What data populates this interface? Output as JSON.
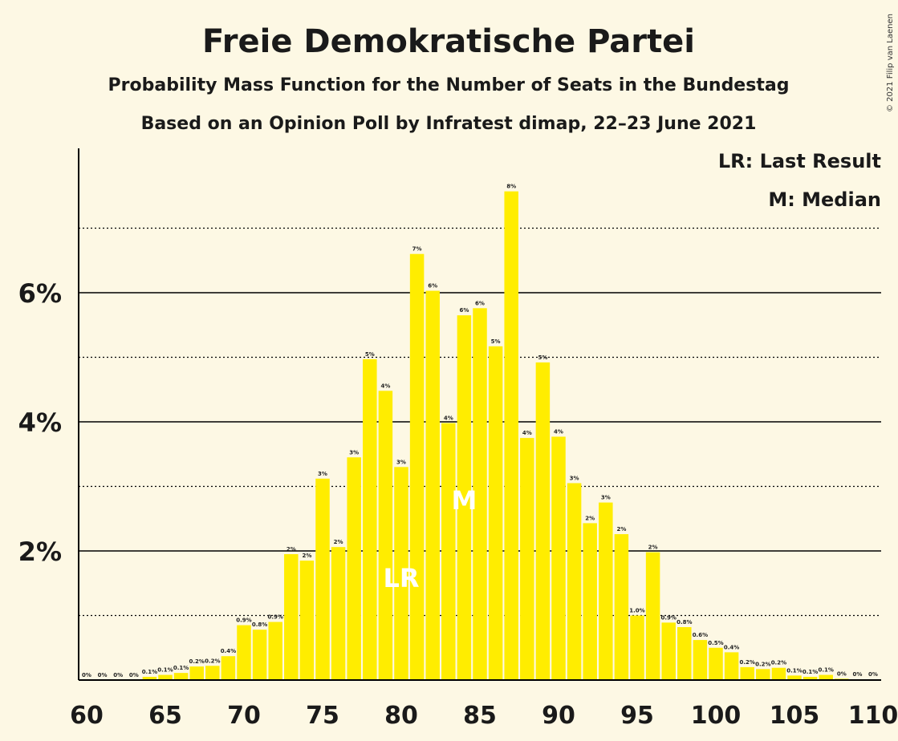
{
  "title": "Freie Demokratische Partei",
  "subtitle": "Probability Mass Function for the Number of Seats in the Bundestag",
  "subtitle2": "Based on an Opinion Poll by Infratest dimap, 22–23 June 2021",
  "copyright": "© 2021 Filip van Laenen",
  "legend": {
    "lr": "LR: Last Result",
    "m": "M: Median"
  },
  "marker_lr": "LR",
  "marker_m": "M",
  "chart_data": {
    "type": "bar",
    "x": [
      60,
      61,
      62,
      63,
      64,
      65,
      66,
      67,
      68,
      69,
      70,
      71,
      72,
      73,
      74,
      75,
      76,
      77,
      78,
      79,
      80,
      81,
      82,
      83,
      84,
      85,
      86,
      87,
      88,
      89,
      90,
      91,
      92,
      93,
      94,
      95,
      96,
      97,
      98,
      99,
      100,
      101,
      102,
      103,
      104,
      105,
      106,
      107,
      108,
      109,
      110
    ],
    "values": [
      0,
      0,
      0,
      0,
      0.05,
      0.08,
      0.11,
      0.21,
      0.22,
      0.37,
      0.85,
      0.78,
      0.9,
      1.95,
      1.85,
      3.12,
      2.06,
      3.45,
      4.97,
      4.48,
      3.3,
      6.6,
      6.03,
      3.98,
      5.65,
      5.76,
      5.17,
      7.57,
      3.75,
      4.92,
      3.77,
      3.05,
      2.43,
      2.75,
      2.26,
      1.0,
      1.98,
      0.89,
      0.82,
      0.62,
      0.5,
      0.43,
      0.2,
      0.17,
      0.19,
      0.07,
      0.05,
      0.08,
      0.02,
      0.01,
      0.01
    ],
    "labels": [
      "0%",
      "0%",
      "0%",
      "0%",
      "0.1%",
      "0.1%",
      "0.1%",
      "0.2%",
      "0.2%",
      "0.4%",
      "0.9%",
      "0.8%",
      "0.9%",
      "2%",
      "2%",
      "3%",
      "2%",
      "3%",
      "5%",
      "4%",
      "3%",
      "7%",
      "6%",
      "4%",
      "6%",
      "6%",
      "5%",
      "8%",
      "4%",
      "5%",
      "4%",
      "3%",
      "2%",
      "3%",
      "2%",
      "1.0%",
      "2%",
      "0.9%",
      "0.8%",
      "0.6%",
      "0.5%",
      "0.4%",
      "0.2%",
      "0.2%",
      "0.2%",
      "0.1%",
      "0.1%",
      "0.1%",
      "0%",
      "0%",
      "0%"
    ],
    "x_ticks": [
      60,
      65,
      70,
      75,
      80,
      85,
      90,
      95,
      100,
      105,
      110
    ],
    "y_ticks": [
      {
        "value": 2,
        "label": "2%"
      },
      {
        "value": 4,
        "label": "4%"
      },
      {
        "value": 6,
        "label": "6%"
      }
    ],
    "ylim": [
      0,
      8.2
    ],
    "xlim": [
      60,
      110
    ],
    "last_result": 80,
    "median": 84,
    "bar_color": "#ffed00",
    "background": "#fdf8e4"
  }
}
